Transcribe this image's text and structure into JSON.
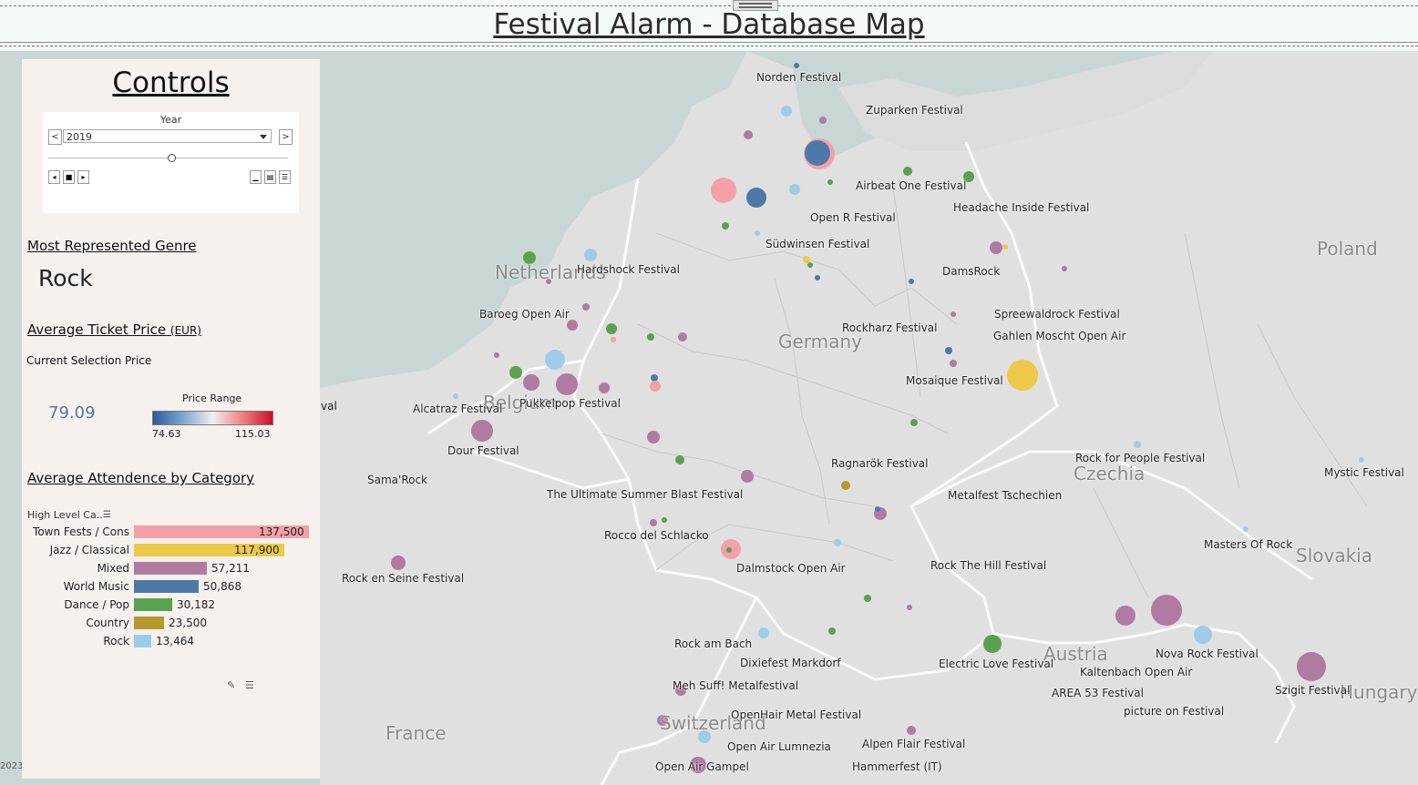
{
  "header": {
    "title": "Festival Alarm - Database Map"
  },
  "map": {
    "countries": [
      "Netherlands",
      "Germany",
      "Poland",
      "Czechia",
      "Slovakia",
      "Austria",
      "France",
      "Switzerland",
      "Hungary",
      "Belgium"
    ],
    "edge_label": "val",
    "footer_year": "2023",
    "festivals": [
      "Norden Festival",
      "Zuparken Festival",
      "Airbeat One Festival",
      "Headache Inside Festival",
      "Open R Festival",
      "Südwinsen Festival",
      "DamsRock",
      "Hardshock Festival",
      "Baroeg Open Air",
      "Spreewaldrock Festival",
      "Rockharz Festival",
      "Gahlen Moscht Open Air",
      "Mosaique Festival",
      "Alcatraz Festival",
      "Pukkelpop Festival",
      "Dour Festival",
      "Ragnarök Festival",
      "Rock for People Festival",
      "Mystic Festival",
      "Sama'Rock",
      "The Ultimate Summer Blast Festival",
      "Metalfest Tschechien",
      "Rocco del Schlacko",
      "Masters Of Rock",
      "Dalmstock Open Air",
      "Rock The Hill Festival",
      "Rock en Seine Festival",
      "Nova Rock Festival",
      "Kaltenbach Open Air",
      "Rock am Bach",
      "Electric Love Festival",
      "Dixiefest Markdorf",
      "Szigit Festival",
      "AREA 53 Festival",
      "Meh Suff! Metalfestival",
      "picture on Festival",
      "OpenHair Metal Festival",
      "Alpen Flair Festival",
      "Open Air Lumnezia",
      "Open Air Gampel",
      "Hammerfest (IT)"
    ]
  },
  "controls": {
    "title": "Controls",
    "year_label": "Year",
    "year_value": "2019",
    "prev_glyph": "<",
    "next_glyph": ">",
    "back_glyph": "◂",
    "stop_glyph": "■",
    "fwd_glyph": "▸",
    "speed_glyphs": [
      "▁",
      "▤",
      "☰"
    ]
  },
  "genre": {
    "heading": "Most Represented Genre",
    "value": "Rock"
  },
  "price": {
    "heading": "Average Ticket Price",
    "heading_unit": "(EUR)",
    "sub": "Current Selection Price",
    "value": "79.09",
    "range_label": "Price Range",
    "range_min": "74.63",
    "range_max": "115.03"
  },
  "attendance": {
    "heading": "Average Attendence by Category",
    "column_header": "High Level Ca..",
    "colors": [
      "#f4a0a8",
      "#edc948",
      "#b07aa1",
      "#4e79a7",
      "#59a14f",
      "#b6992d",
      "#a0cbe8"
    ]
  },
  "chart_data": {
    "type": "bar",
    "title": "Average Attendence by Category",
    "categories": [
      "Town Fests / Cons",
      "Jazz / Classical",
      "Mixed",
      "World Music",
      "Dance / Pop",
      "Country",
      "Rock"
    ],
    "values": [
      137500,
      117900,
      57211,
      50868,
      30182,
      23500,
      13464
    ],
    "value_labels": [
      "137,500",
      "117,900",
      "57,211",
      "50,868",
      "30,182",
      "23,500",
      "13,464"
    ],
    "xlim": [
      0,
      137500
    ]
  }
}
